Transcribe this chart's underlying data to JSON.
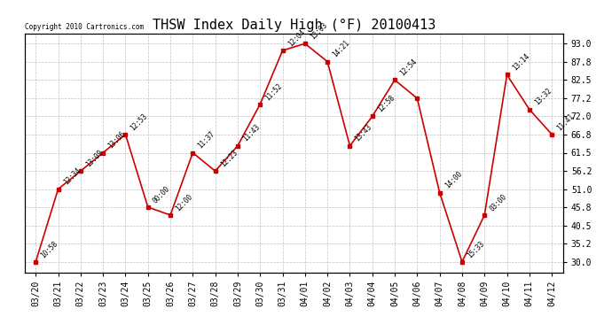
{
  "title": "THSW Index Daily High (°F) 20100413",
  "copyright": "Copyright 2010 Cartronics.com",
  "x_labels": [
    "03/20",
    "03/21",
    "03/22",
    "03/23",
    "03/24",
    "03/25",
    "03/26",
    "03/27",
    "03/28",
    "03/29",
    "03/30",
    "03/31",
    "04/01",
    "04/02",
    "04/03",
    "04/04",
    "04/05",
    "04/06",
    "04/07",
    "04/08",
    "04/09",
    "04/10",
    "04/11",
    "04/12"
  ],
  "y_values": [
    30.0,
    51.0,
    56.2,
    61.5,
    66.8,
    45.8,
    43.5,
    61.5,
    56.2,
    63.5,
    75.5,
    91.0,
    93.0,
    87.8,
    63.5,
    72.0,
    82.5,
    77.2,
    50.0,
    30.0,
    43.5,
    84.0,
    74.0,
    66.8
  ],
  "point_labels": [
    "10:58",
    "12:34",
    "13:09",
    "13:06",
    "12:53",
    "00:00",
    "12:00",
    "11:37",
    "12:23",
    "11:43",
    "11:52",
    "12:04",
    "13:03",
    "14:21",
    "13:43",
    "12:58",
    "12:54",
    "",
    "14:00",
    "15:33",
    "03:00",
    "13:14",
    "13:32",
    "11:41"
  ],
  "ylim": [
    27.0,
    96.0
  ],
  "yticks": [
    30.0,
    35.2,
    40.5,
    45.8,
    51.0,
    56.2,
    61.5,
    66.8,
    72.0,
    77.2,
    82.5,
    87.8,
    93.0
  ],
  "line_color": "#cc0000",
  "marker_color": "#cc0000",
  "bg_color": "#ffffff",
  "grid_color": "#b0b0b0",
  "title_fontsize": 11,
  "tick_fontsize": 7
}
